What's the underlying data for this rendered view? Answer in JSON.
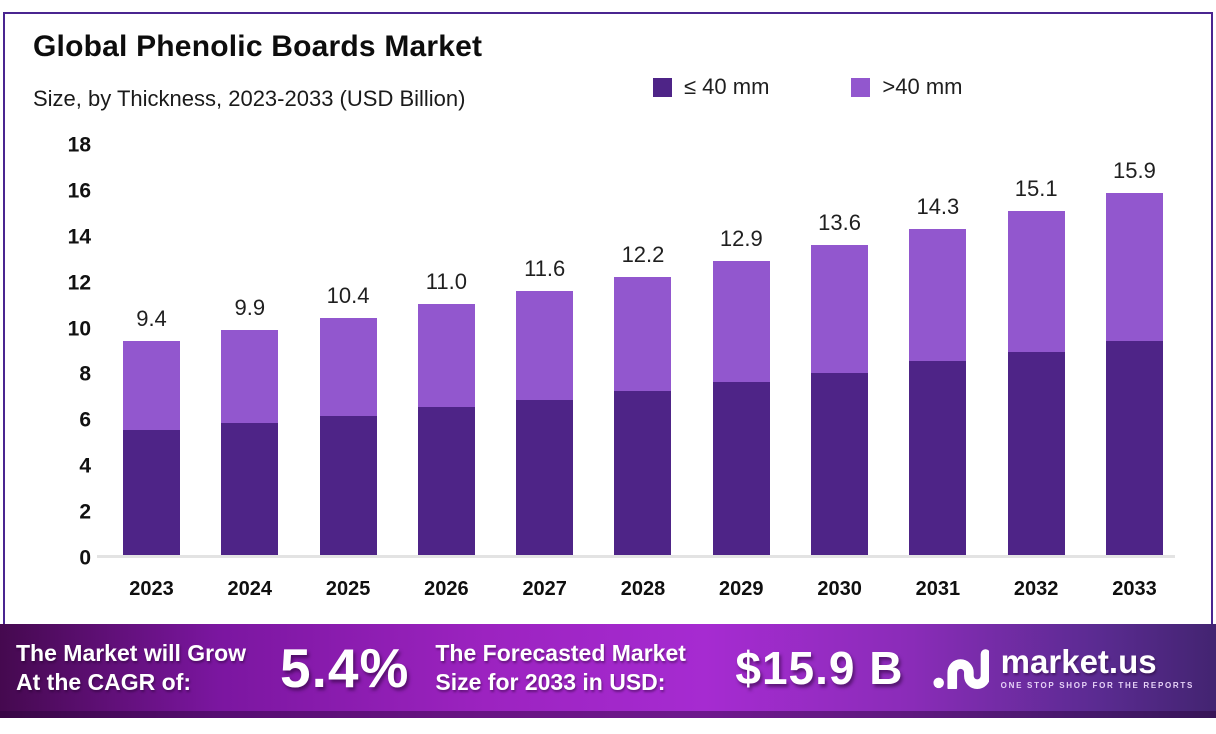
{
  "header": {
    "title": "Global Phenolic Boards Market",
    "subtitle": "Size, by Thickness, 2023-2033 (USD Billion)"
  },
  "legend": [
    {
      "label": "≤ 40 mm",
      "color": "#4e2487"
    },
    {
      "label": ">40 mm",
      "color": "#9257ce"
    }
  ],
  "chart_data": {
    "type": "bar",
    "stacked": true,
    "title": "Global Phenolic Boards Market Size, by Thickness, 2023-2033 (USD Billion)",
    "categories": [
      "2023",
      "2024",
      "2025",
      "2026",
      "2027",
      "2028",
      "2029",
      "2030",
      "2031",
      "2032",
      "2033"
    ],
    "series": [
      {
        "name": "≤ 40 mm",
        "color": "#4e2487",
        "values": [
          5.5,
          5.8,
          6.1,
          6.5,
          6.8,
          7.2,
          7.6,
          8.0,
          8.5,
          8.9,
          9.4
        ]
      },
      {
        "name": ">40 mm",
        "color": "#9257ce",
        "values": [
          3.9,
          4.1,
          4.3,
          4.5,
          4.8,
          5.0,
          5.3,
          5.6,
          5.8,
          6.2,
          6.5
        ]
      }
    ],
    "totals": [
      9.4,
      9.9,
      10.4,
      11.0,
      11.6,
      12.2,
      12.9,
      13.6,
      14.3,
      15.1,
      15.9
    ],
    "total_labels": [
      "9.4",
      "9.9",
      "10.4",
      "11.0",
      "11.6",
      "12.2",
      "12.9",
      "13.6",
      "14.3",
      "15.1",
      "15.9"
    ],
    "xlabel": "",
    "ylabel": "",
    "ylim": [
      0,
      18
    ],
    "yticks": [
      0,
      2,
      4,
      6,
      8,
      10,
      12,
      14,
      16,
      18
    ],
    "grid": false,
    "legend_position": "top-right"
  },
  "footer": {
    "cagr_line1": "The Market will Grow",
    "cagr_line2": "At the CAGR of:",
    "cagr_value": "5.4%",
    "forecast_line1": "The Forecasted Market",
    "forecast_line2": "Size for 2033 in USD:",
    "forecast_value": "$15.9 B",
    "logo_name": "market.us",
    "logo_tagline": "ONE STOP SHOP FOR THE REPORTS"
  },
  "colors": {
    "frame_border": "#4a2590",
    "axis_line": "#e3e3e3",
    "banner_left": "#45094f",
    "banner_mid": "#a62bd1",
    "banner_right": "#432471"
  }
}
